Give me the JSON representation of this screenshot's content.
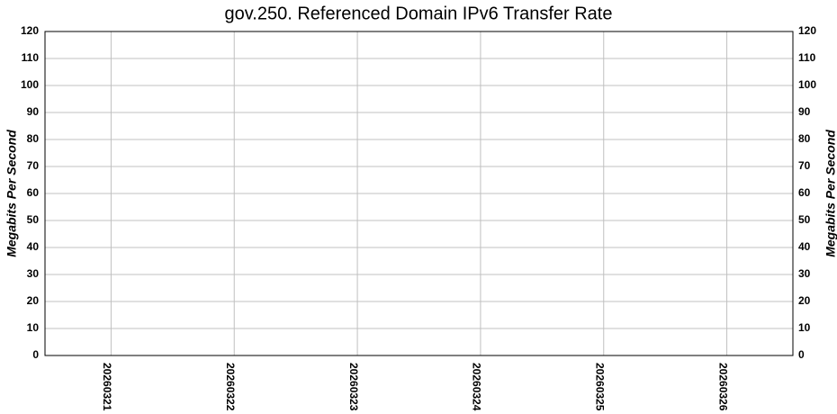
{
  "chart_data": {
    "type": "bar",
    "title": "gov.250. Referenced Domain IPv6 Transfer Rate",
    "ylabel": "Megabits Per Second",
    "y2label": "Megabits Per Second",
    "categories": [
      "20260321",
      "20260322",
      "20260323",
      "20260324",
      "20260325",
      "20260326"
    ],
    "values": [
      0,
      0,
      0,
      0,
      0,
      0
    ],
    "color": "#000080",
    "ylim": [
      0,
      120
    ],
    "yticks": [
      0,
      10,
      20,
      30,
      40,
      50,
      60,
      70,
      80,
      90,
      100,
      110,
      120
    ],
    "y2lim": [
      0,
      120
    ],
    "y2ticks": [
      0,
      10,
      20,
      30,
      40,
      50,
      60,
      70,
      80,
      90,
      100,
      110,
      120
    ],
    "grid": true
  }
}
